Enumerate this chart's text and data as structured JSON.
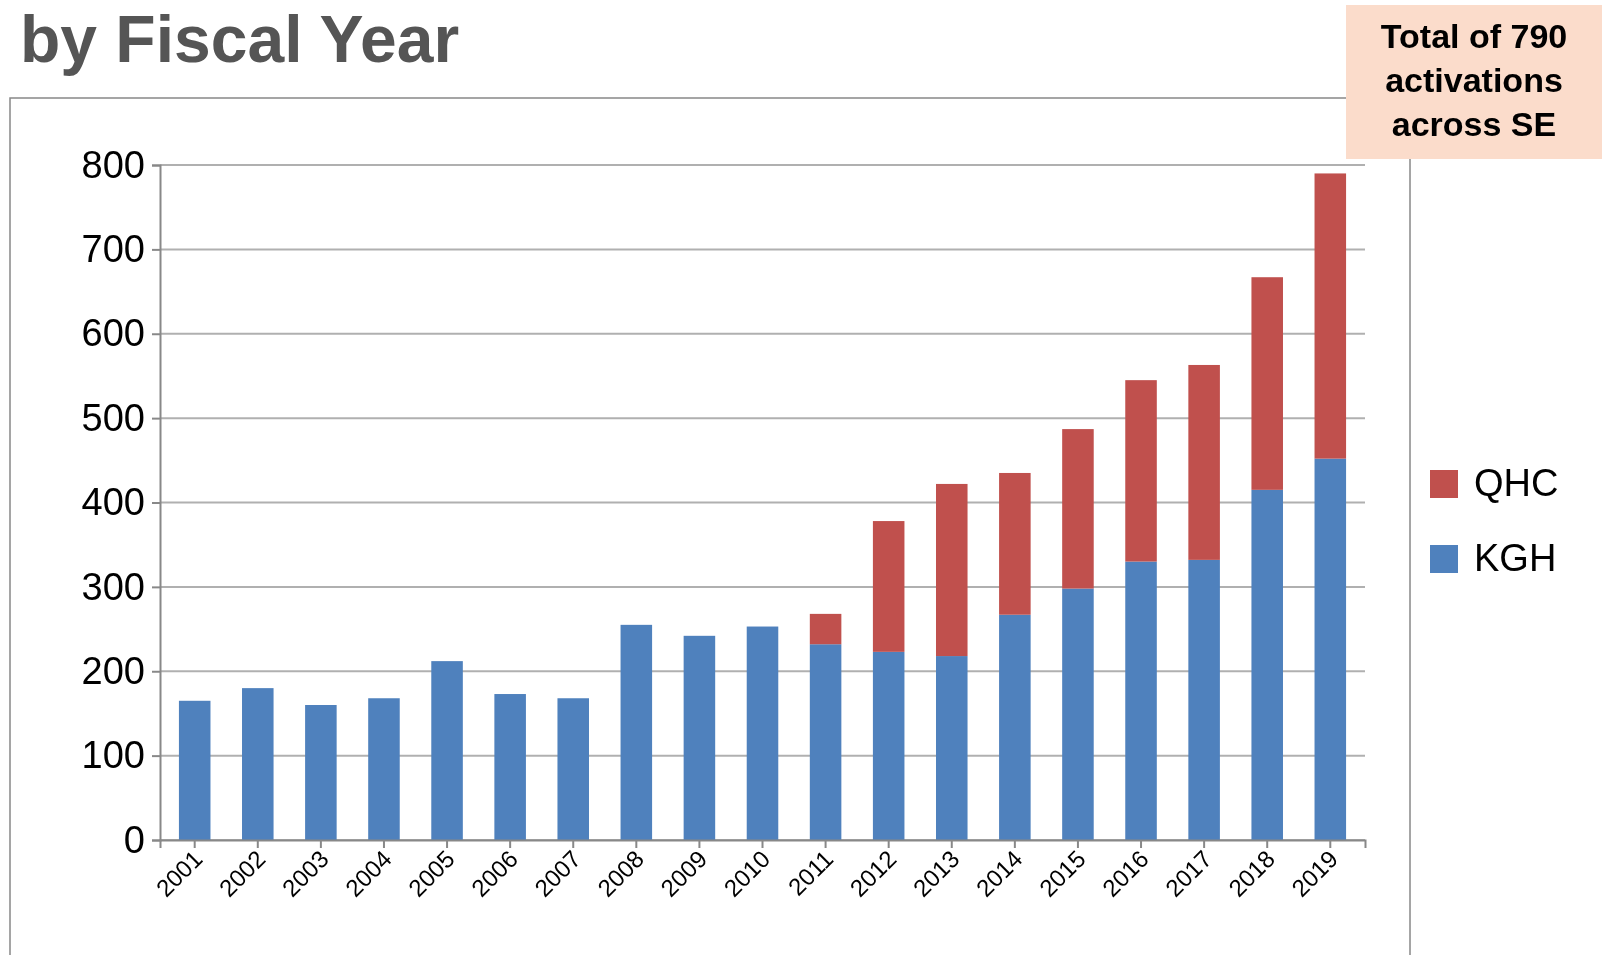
{
  "chart_data": {
    "type": "bar",
    "title": "by Fiscal Year",
    "annotations": [
      "Total of 790 activations across SE"
    ],
    "categories": [
      "2001",
      "2002",
      "2003",
      "2004",
      "2005",
      "2006",
      "2007",
      "2008",
      "2009",
      "2010",
      "2011",
      "2012",
      "2013",
      "2014",
      "2015",
      "2016",
      "2017",
      "2018",
      "2019"
    ],
    "stacked": true,
    "series": [
      {
        "name": "KGH",
        "color": "#4f81bd",
        "values": [
          165,
          180,
          160,
          168,
          212,
          173,
          168,
          255,
          242,
          253,
          232,
          223,
          218,
          267,
          298,
          330,
          332,
          415,
          452
        ]
      },
      {
        "name": "QHC",
        "color": "#c0504d",
        "values": [
          0,
          0,
          0,
          0,
          0,
          0,
          0,
          0,
          0,
          0,
          36,
          155,
          204,
          168,
          189,
          215,
          231,
          252,
          338
        ]
      }
    ],
    "ylim": [
      0,
      800
    ],
    "yticks": [
      0,
      100,
      200,
      300,
      400,
      500,
      600,
      700,
      800
    ],
    "grid": "y",
    "legend": "right"
  }
}
